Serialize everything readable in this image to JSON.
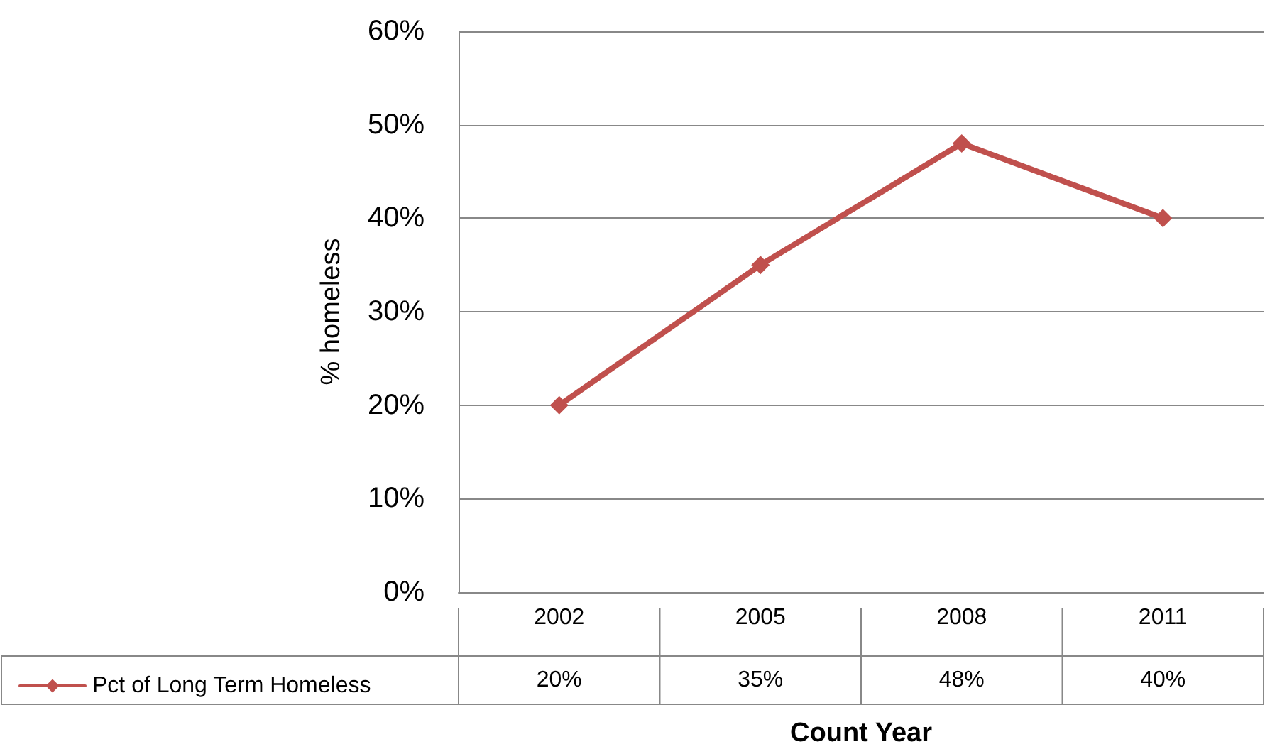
{
  "chart_data": {
    "type": "line",
    "xlabel": "Count Year",
    "ylabel": "% homeless",
    "categories": [
      "2002",
      "2005",
      "2008",
      "2011"
    ],
    "series": [
      {
        "name": "Pct of Long Term Homeless",
        "color": "#c0504d",
        "values": [
          20,
          35,
          48,
          40
        ],
        "value_labels": [
          "20%",
          "35%",
          "48%",
          "40%"
        ]
      }
    ],
    "ylim": [
      0,
      60
    ],
    "yticks": [
      {
        "value": 0,
        "label": "0%"
      },
      {
        "value": 10,
        "label": "10%"
      },
      {
        "value": 20,
        "label": "20%"
      },
      {
        "value": 30,
        "label": "30%"
      },
      {
        "value": 40,
        "label": "40%"
      },
      {
        "value": 50,
        "label": "50%"
      },
      {
        "value": 60,
        "label": "60%"
      }
    ],
    "grid": "y",
    "marker": "diamond",
    "line_style": "solid",
    "legend": "bottom left"
  }
}
